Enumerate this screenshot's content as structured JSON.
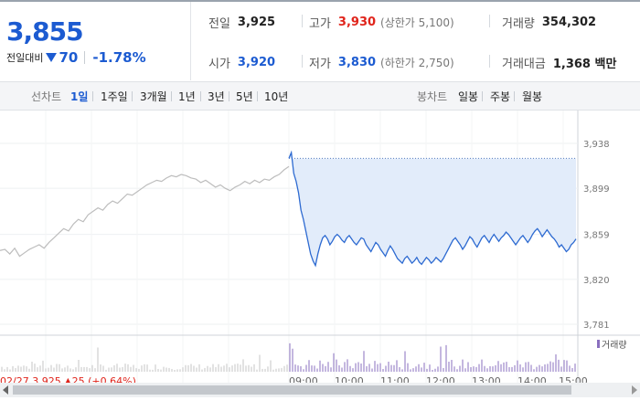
{
  "quote": {
    "current_price": "3,855",
    "change_label": "전일대비",
    "change_value": "70",
    "change_percent": "-1.78%",
    "down_color": "#1c5bd1",
    "up_color": "#e0241b"
  },
  "stats": {
    "prev_close_label": "전일",
    "prev_close": "3,925",
    "high_label": "고가",
    "high": "3,930",
    "upper_limit": "(상한가 5,100)",
    "volume_label": "거래량",
    "volume": "354,302",
    "open_label": "시가",
    "open": "3,920",
    "low_label": "저가",
    "low": "3,830",
    "lower_limit": "(하한가 2,750)",
    "trade_value_label": "거래대금",
    "trade_value": "1,368 백만"
  },
  "tabs": {
    "line_label": "선차트",
    "line_periods": [
      "1일",
      "1주일",
      "3개월",
      "1년",
      "3년",
      "5년",
      "10년"
    ],
    "active_period": "1일",
    "candle_label": "봉차트",
    "candle_periods": [
      "일봉",
      "주봉",
      "월봉"
    ]
  },
  "chart_data": {
    "type": "line",
    "y_ticks": [
      "3,938",
      "3,899",
      "3,859",
      "3,820",
      "3,781"
    ],
    "ylim": [
      3781,
      3938
    ],
    "prev_close_reference": 3925,
    "volume_legend": "거래량",
    "x_tick_labels": [
      "09:00",
      "10:00",
      "11:00",
      "12:00",
      "13:00",
      "14:00",
      "15:00"
    ],
    "bottom_left_text": "02/27 3,925 ▲25 (+0.64%)",
    "previous_session_values": [
      3845,
      3846,
      3842,
      3847,
      3840,
      3843,
      3846,
      3848,
      3850,
      3847,
      3852,
      3856,
      3860,
      3864,
      3862,
      3868,
      3872,
      3870,
      3876,
      3879,
      3882,
      3880,
      3885,
      3888,
      3886,
      3890,
      3894,
      3893,
      3896,
      3899,
      3902,
      3904,
      3906,
      3905,
      3908,
      3910,
      3909,
      3911,
      3910,
      3908,
      3907,
      3904,
      3906,
      3903,
      3900,
      3902,
      3899,
      3897,
      3900,
      3902,
      3905,
      3903,
      3906,
      3904,
      3907,
      3906,
      3909,
      3911,
      3915,
      3918
    ],
    "today_values": [
      3925,
      3930,
      3912,
      3905,
      3895,
      3880,
      3872,
      3862,
      3852,
      3842,
      3836,
      3832,
      3842,
      3850,
      3856,
      3858,
      3855,
      3850,
      3853,
      3857,
      3859,
      3857,
      3854,
      3852,
      3856,
      3858,
      3855,
      3852,
      3850,
      3853,
      3856,
      3855,
      3850,
      3847,
      3844,
      3848,
      3852,
      3850,
      3846,
      3843,
      3840,
      3845,
      3849,
      3846,
      3842,
      3838,
      3836,
      3834,
      3838,
      3840,
      3837,
      3834,
      3836,
      3839,
      3835,
      3833,
      3836,
      3839,
      3837,
      3834,
      3836,
      3839,
      3837,
      3835,
      3838,
      3842,
      3846,
      3850,
      3854,
      3856,
      3853,
      3850,
      3846,
      3849,
      3853,
      3857,
      3855,
      3851,
      3848,
      3852,
      3856,
      3858,
      3855,
      3852,
      3856,
      3859,
      3856,
      3853,
      3856,
      3858,
      3861,
      3859,
      3856,
      3853,
      3850,
      3853,
      3856,
      3858,
      3855,
      3852,
      3855,
      3859,
      3862,
      3864,
      3861,
      3857,
      3860,
      3863,
      3860,
      3857,
      3855,
      3852,
      3848,
      3850,
      3847,
      3844,
      3846,
      3850,
      3852,
      3855
    ]
  }
}
